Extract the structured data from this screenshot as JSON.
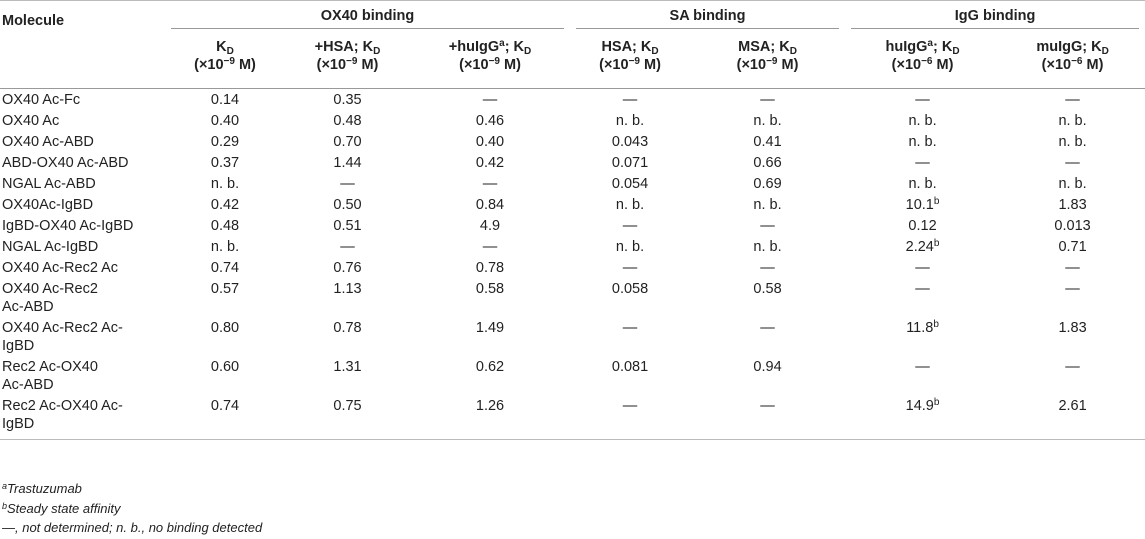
{
  "table": {
    "groups": [
      {
        "label": "OX40 binding"
      },
      {
        "label": "SA binding"
      },
      {
        "label": "IgG binding"
      }
    ],
    "molecule_header": "Molecule",
    "columns": [
      {
        "pre": "K",
        "sub": "D",
        "sup": "",
        "post": "",
        "unit_pre": "(×10",
        "unit_exp": "−9",
        "unit_post": " M)"
      },
      {
        "pre": "+HSA; K",
        "sub": "D",
        "sup": "",
        "post": "",
        "unit_pre": "(×10",
        "unit_exp": "−9",
        "unit_post": " M)"
      },
      {
        "pre": "+huIgG",
        "sup": "a",
        "post": "; K",
        "sub": "D",
        "unit_pre": "(×10",
        "unit_exp": "−9",
        "unit_post": " M)"
      },
      {
        "pre": "HSA; K",
        "sub": "D",
        "sup": "",
        "post": "",
        "unit_pre": "(×10",
        "unit_exp": "−9",
        "unit_post": " M)"
      },
      {
        "pre": "MSA; K",
        "sub": "D",
        "sup": "",
        "post": "",
        "unit_pre": "(×10",
        "unit_exp": "−9",
        "unit_post": " M)"
      },
      {
        "pre": "huIgG",
        "sup": "a",
        "post": "; K",
        "sub": "D",
        "unit_pre": "(×10",
        "unit_exp": "−6",
        "unit_post": " M)"
      },
      {
        "pre": "muIgG; K",
        "sub": "D",
        "sup": "",
        "post": "",
        "unit_pre": "(×10",
        "unit_exp": "−6",
        "unit_post": " M)"
      }
    ],
    "rows": [
      {
        "molecule": [
          "OX40 Ac-Fc"
        ],
        "cells": [
          {
            "v": "0.14"
          },
          {
            "v": "0.35"
          },
          {
            "v": "—"
          },
          {
            "v": "—"
          },
          {
            "v": "—"
          },
          {
            "v": "—"
          },
          {
            "v": "—"
          }
        ]
      },
      {
        "molecule": [
          "OX40 Ac"
        ],
        "cells": [
          {
            "v": "0.40"
          },
          {
            "v": "0.48"
          },
          {
            "v": "0.46"
          },
          {
            "v": "n. b."
          },
          {
            "v": "n. b."
          },
          {
            "v": "n. b."
          },
          {
            "v": "n. b."
          }
        ]
      },
      {
        "molecule": [
          "OX40 Ac-ABD"
        ],
        "cells": [
          {
            "v": "0.29"
          },
          {
            "v": "0.70"
          },
          {
            "v": "0.40"
          },
          {
            "v": "0.043"
          },
          {
            "v": "0.41"
          },
          {
            "v": "n. b."
          },
          {
            "v": "n. b."
          }
        ]
      },
      {
        "molecule": [
          "ABD-OX40 Ac-ABD"
        ],
        "cells": [
          {
            "v": "0.37"
          },
          {
            "v": "1.44"
          },
          {
            "v": "0.42"
          },
          {
            "v": "0.071"
          },
          {
            "v": "0.66"
          },
          {
            "v": "—"
          },
          {
            "v": "—"
          }
        ]
      },
      {
        "molecule": [
          "NGAL Ac-ABD"
        ],
        "cells": [
          {
            "v": "n. b."
          },
          {
            "v": "—"
          },
          {
            "v": "—"
          },
          {
            "v": "0.054"
          },
          {
            "v": "0.69"
          },
          {
            "v": "n. b."
          },
          {
            "v": "n. b."
          }
        ]
      },
      {
        "molecule": [
          "OX40Ac-IgBD"
        ],
        "cells": [
          {
            "v": "0.42"
          },
          {
            "v": "0.50"
          },
          {
            "v": "0.84"
          },
          {
            "v": "n. b."
          },
          {
            "v": "n. b."
          },
          {
            "v": "10.1",
            "sup": "b"
          },
          {
            "v": "1.83"
          }
        ]
      },
      {
        "molecule": [
          "IgBD-OX40 Ac-IgBD"
        ],
        "cells": [
          {
            "v": "0.48"
          },
          {
            "v": "0.51"
          },
          {
            "v": "4.9"
          },
          {
            "v": "—"
          },
          {
            "v": "—"
          },
          {
            "v": "0.12"
          },
          {
            "v": "0.013"
          }
        ]
      },
      {
        "molecule": [
          "NGAL Ac-IgBD"
        ],
        "cells": [
          {
            "v": "n. b."
          },
          {
            "v": "—"
          },
          {
            "v": "—"
          },
          {
            "v": "n. b."
          },
          {
            "v": "n. b."
          },
          {
            "v": "2.24",
            "sup": "b"
          },
          {
            "v": "0.71"
          }
        ]
      },
      {
        "molecule": [
          "OX40 Ac-Rec2 Ac"
        ],
        "cells": [
          {
            "v": "0.74"
          },
          {
            "v": "0.76"
          },
          {
            "v": "0.78"
          },
          {
            "v": "—"
          },
          {
            "v": "—"
          },
          {
            "v": "—"
          },
          {
            "v": "—"
          }
        ]
      },
      {
        "molecule": [
          "OX40 Ac-Rec2",
          "Ac-ABD"
        ],
        "cells": [
          {
            "v": "0.57"
          },
          {
            "v": "1.13"
          },
          {
            "v": "0.58"
          },
          {
            "v": "0.058"
          },
          {
            "v": "0.58"
          },
          {
            "v": "—"
          },
          {
            "v": "—"
          }
        ]
      },
      {
        "molecule": [
          "OX40 Ac-Rec2 Ac-",
          "IgBD"
        ],
        "cells": [
          {
            "v": "0.80"
          },
          {
            "v": "0.78"
          },
          {
            "v": "1.49"
          },
          {
            "v": "—"
          },
          {
            "v": "—"
          },
          {
            "v": "11.8",
            "sup": "b"
          },
          {
            "v": "1.83"
          }
        ]
      },
      {
        "molecule": [
          "Rec2 Ac-OX40",
          "Ac-ABD"
        ],
        "cells": [
          {
            "v": "0.60"
          },
          {
            "v": "1.31"
          },
          {
            "v": "0.62"
          },
          {
            "v": "0.081"
          },
          {
            "v": "0.94"
          },
          {
            "v": "—"
          },
          {
            "v": "—"
          }
        ]
      },
      {
        "molecule": [
          "Rec2 Ac-OX40 Ac-",
          "IgBD"
        ],
        "cells": [
          {
            "v": "0.74"
          },
          {
            "v": "0.75"
          },
          {
            "v": "1.26"
          },
          {
            "v": "—"
          },
          {
            "v": "—"
          },
          {
            "v": "14.9",
            "sup": "b"
          },
          {
            "v": "2.61"
          }
        ]
      }
    ]
  },
  "footnotes": [
    {
      "mark": "a",
      "text": "Trastuzumab"
    },
    {
      "mark": "b",
      "text": "Steady state affinity"
    },
    {
      "mark": "",
      "text": "—, not determined; n. b., no binding detected"
    }
  ]
}
